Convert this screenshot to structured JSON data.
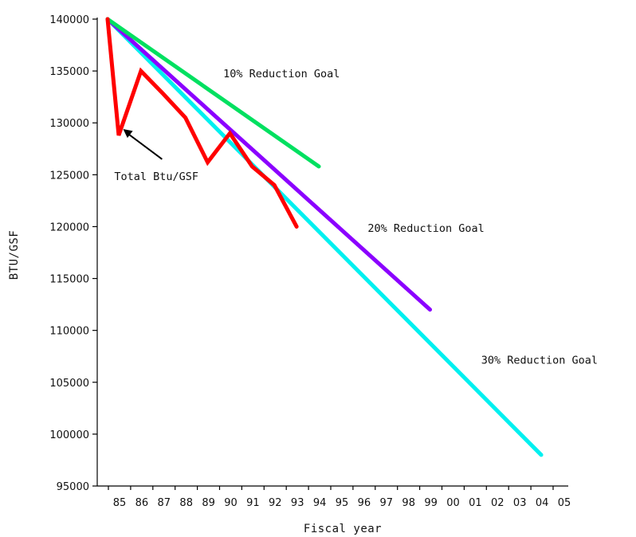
{
  "chart_data": {
    "type": "line",
    "xlabel": "Fiscal year",
    "ylabel": "BTU/GSF",
    "ylim": [
      95000,
      140000
    ],
    "yticks": [
      95000,
      100000,
      105000,
      110000,
      115000,
      120000,
      125000,
      130000,
      135000,
      140000
    ],
    "categories": [
      "85",
      "86",
      "87",
      "88",
      "89",
      "90",
      "91",
      "92",
      "93",
      "94",
      "95",
      "96",
      "97",
      "98",
      "99",
      "00",
      "01",
      "02",
      "03",
      "04",
      "05"
    ],
    "grid": false,
    "series": [
      {
        "name": "30% Reduction Goal",
        "color": "#00f0f0",
        "points": [
          {
            "x": 0,
            "y": 140000
          },
          {
            "x": 19.5,
            "y": 98000
          }
        ]
      },
      {
        "name": "20% Reduction Goal",
        "color": "#8b00ff",
        "points": [
          {
            "x": 0,
            "y": 140000
          },
          {
            "x": 14.5,
            "y": 112000
          }
        ]
      },
      {
        "name": "10% Reduction Goal",
        "color": "#00e060",
        "points": [
          {
            "x": 0,
            "y": 140000
          },
          {
            "x": 9.5,
            "y": 125800
          }
        ]
      },
      {
        "name": "Total Btu/GSF",
        "color": "#ff0000",
        "points": [
          {
            "x": 0,
            "y": 140000
          },
          {
            "x": 0.5,
            "y": 128800
          },
          {
            "x": 1.5,
            "y": 135000
          },
          {
            "x": 2.5,
            "y": 132800
          },
          {
            "x": 3.5,
            "y": 130500
          },
          {
            "x": 4.5,
            "y": 126200
          },
          {
            "x": 5.5,
            "y": 129000
          },
          {
            "x": 6.5,
            "y": 125800
          },
          {
            "x": 7.5,
            "y": 124000
          },
          {
            "x": 8.5,
            "y": 120000
          }
        ]
      }
    ],
    "annotations": [
      {
        "text": "10% Reduction Goal",
        "x": 5.2,
        "y": 134400
      },
      {
        "text": "20% Reduction Goal",
        "x": 11.7,
        "y": 119500
      },
      {
        "text": "30% Reduction Goal",
        "x": 16.8,
        "y": 106800
      },
      {
        "text": "Total Btu/GSF",
        "x": 0.3,
        "y": 124500,
        "arrow_to": {
          "x": 0.7,
          "y": 129400
        }
      }
    ]
  }
}
